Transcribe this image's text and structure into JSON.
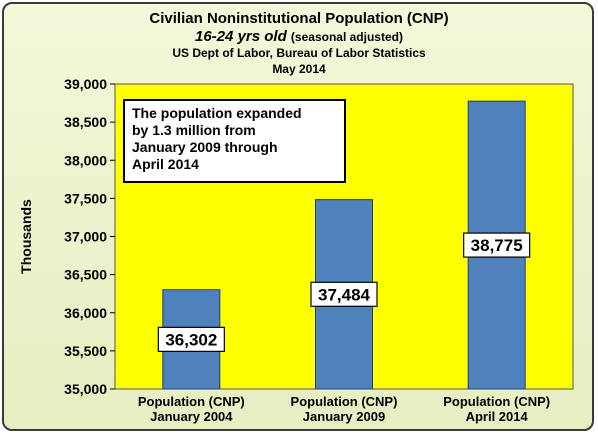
{
  "colors": {
    "plot_background": "#ffff00",
    "bar_fill": "#4f81bd",
    "bar_stroke": "#1f3f78",
    "frame_background": "#eef3cf"
  },
  "chart_data": {
    "type": "bar",
    "title": "Civilian Noninstitutional Population (CNP)",
    "subtitle": "16-24 yrs old",
    "subtitle_note": "(seasonal adjusted)",
    "source": "US Dept of Labor, Bureau of Labor Statistics",
    "date": "May 2014",
    "ylabel": "Thousands",
    "xlabel": "",
    "ylim": [
      35000,
      39000
    ],
    "yticks": [
      "35,000",
      "35,500",
      "36,000",
      "36,500",
      "37,000",
      "37,500",
      "38,000",
      "38,500",
      "39,000"
    ],
    "categories": [
      [
        "Population (CNP)",
        "January 2004"
      ],
      [
        "Population (CNP)",
        "January 2009"
      ],
      [
        "Population (CNP)",
        "April 2014"
      ]
    ],
    "values": [
      36302,
      37484,
      38775
    ],
    "data_labels": [
      "36,302",
      "37,484",
      "38,775"
    ],
    "annotation": [
      "The population expanded",
      "by 1.3 million from",
      "January 2009 through",
      "April 2014"
    ],
    "grid": false,
    "legend": "none"
  }
}
